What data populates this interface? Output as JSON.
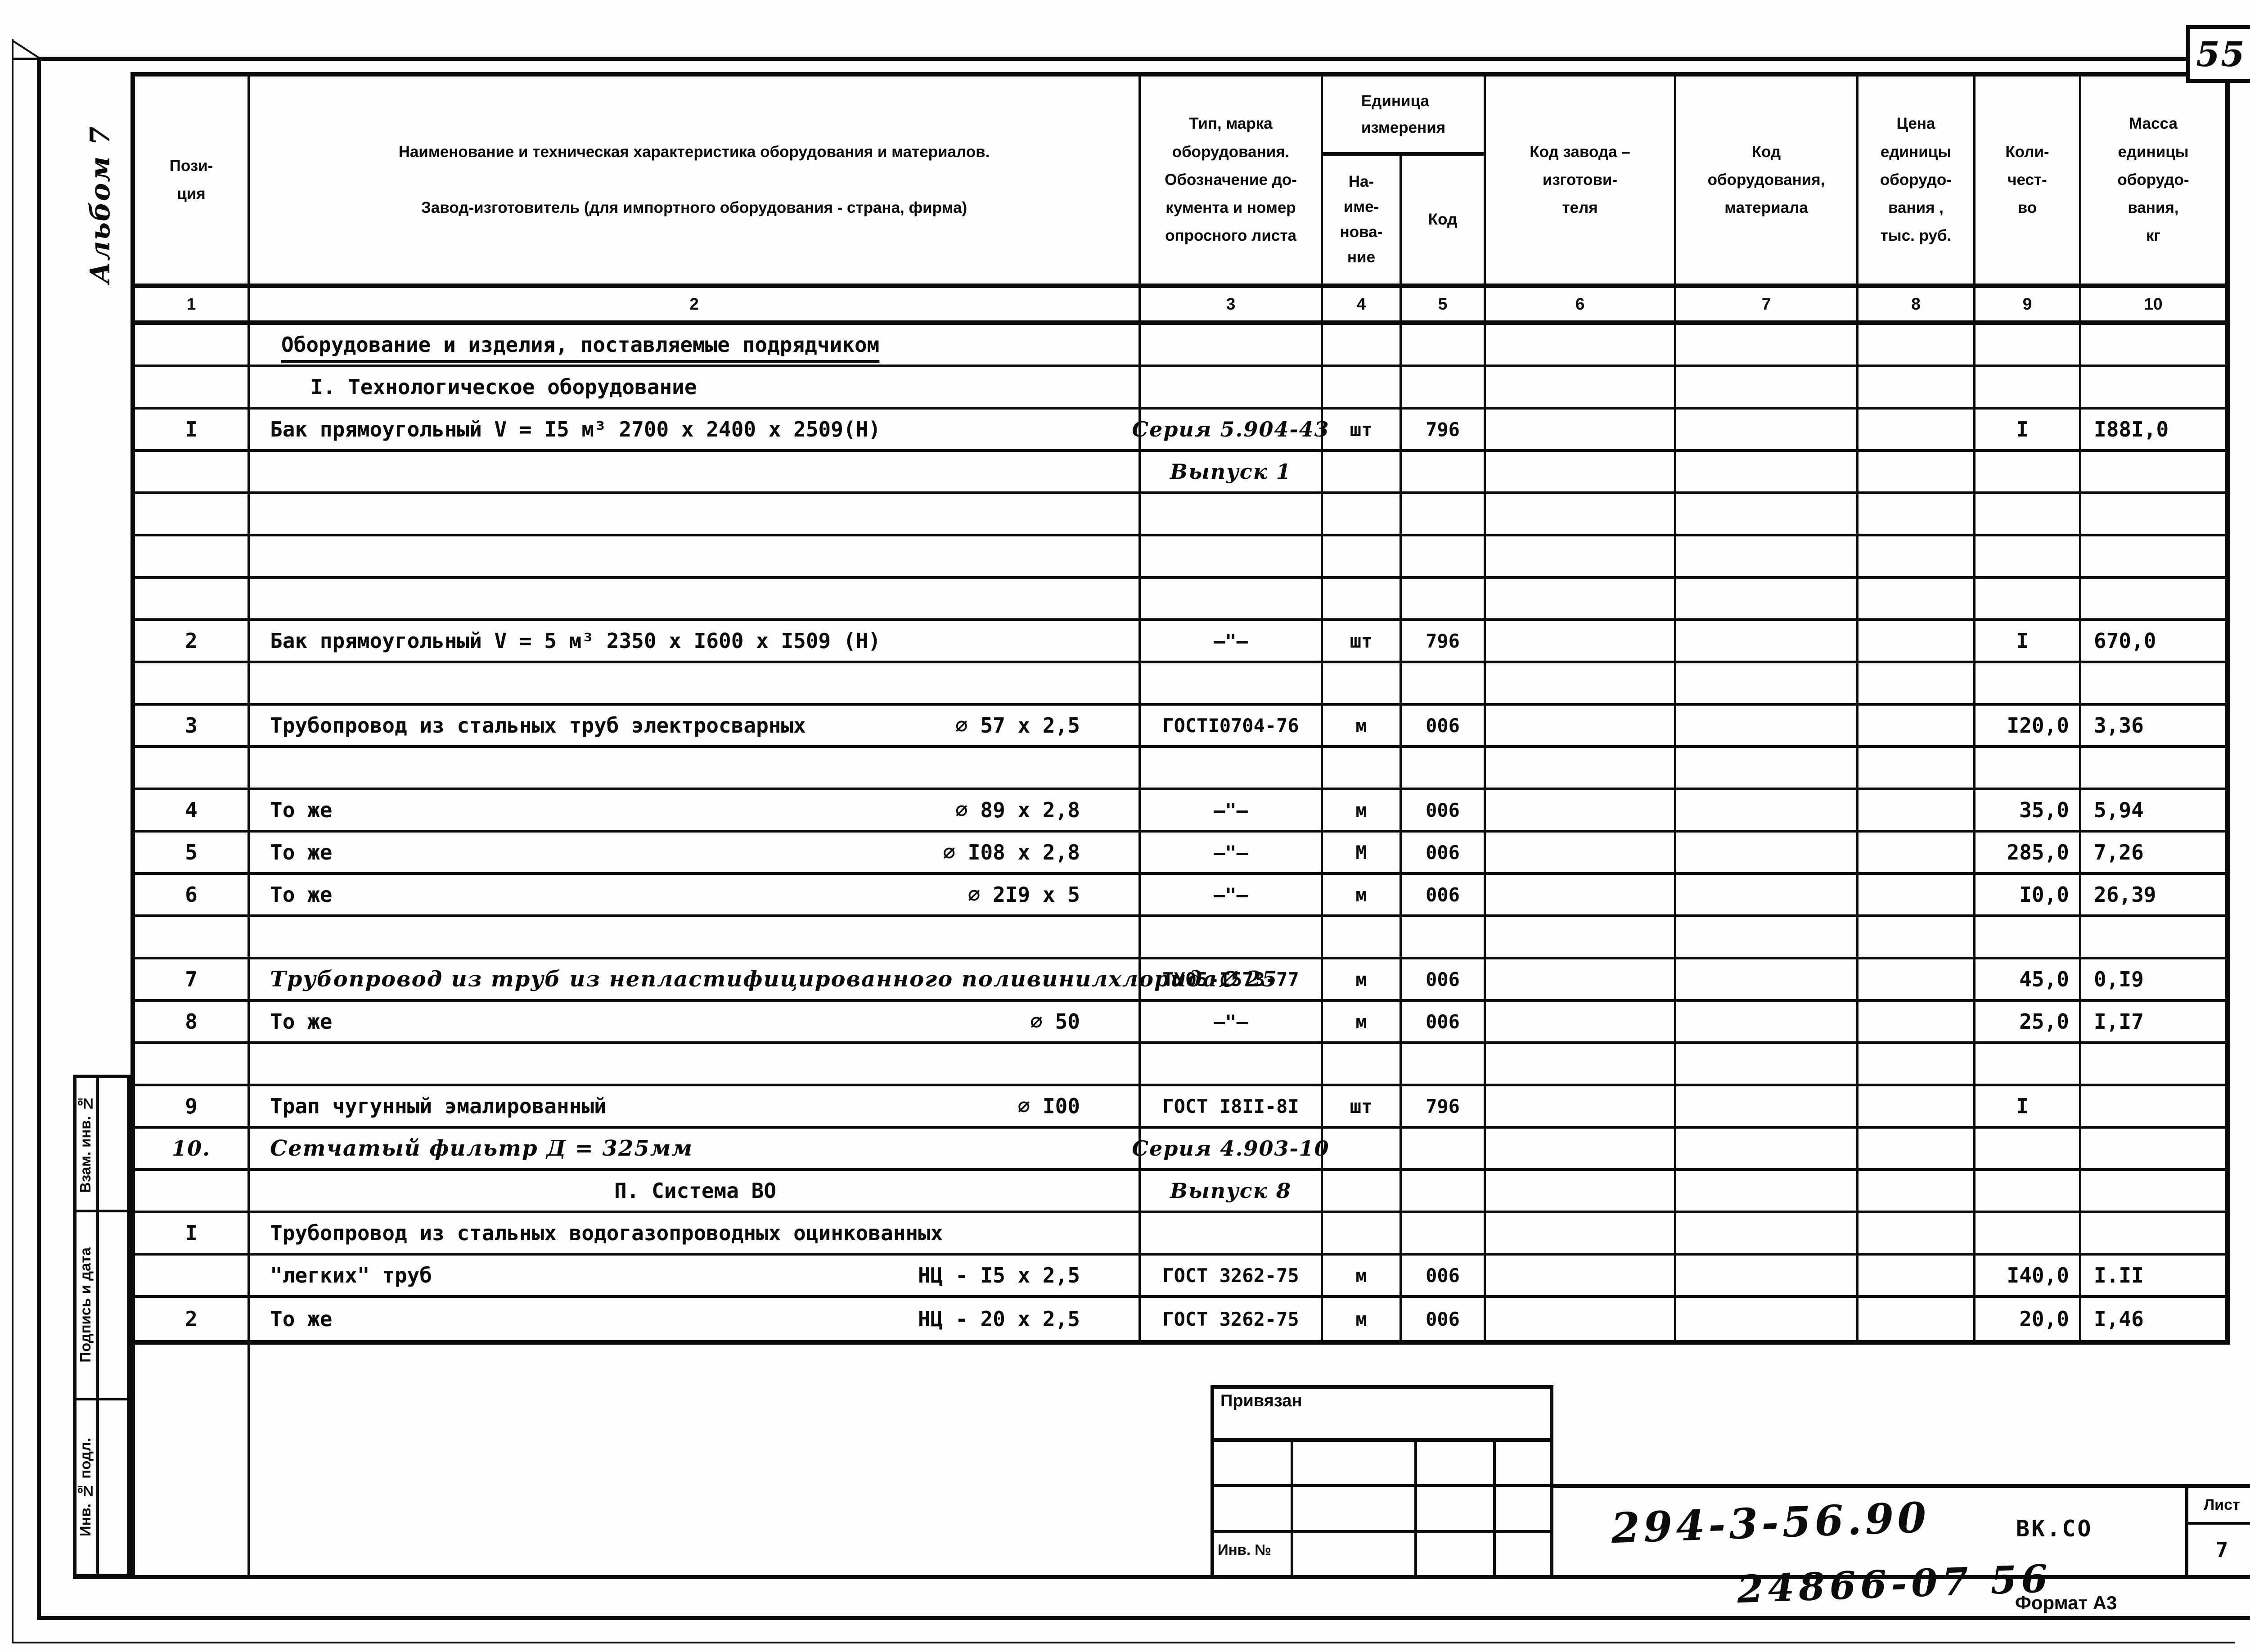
{
  "page": {
    "sheet_corner": "55",
    "album": "Альбом 7",
    "stamp_label": "Привязан",
    "stamp_inv_label": "Инв. №",
    "doc_number": "294-3-56.90",
    "doc_code": "ВК.СО",
    "sheet_label": "Лист",
    "sheet_number": "7",
    "footer_number": "24866-07 56",
    "format": "Формат А3"
  },
  "sidebar": {
    "items": [
      "Взам. инв. №",
      "Подпись и дата",
      "Инв. № подл."
    ]
  },
  "table": {
    "headers": {
      "pos": "Пози-\nция",
      "name": "Наименование и техническая характеристика  оборудования и материалов.\n\nЗавод-изготовитель  (для импортного оборудования -  страна, фирма)",
      "type": "Тип,    марка\nоборудования.\nОбозначение до-\nкумента и номер\nопросного листа",
      "unit_group": "Единица\nизмерения",
      "unit_name": "На-\nиме-\nнова-\nние",
      "unit_code": "Код",
      "plant": "Код  завода –\nизготови-\nтеля",
      "equip": "Код\nоборудования,\nматериала",
      "price": "Цена\nединицы\nоборудо-\nвания ,\nтыс. руб.",
      "qty": "Коли-\nчест-\nво",
      "mass": "Масса\nединицы\nоборудо-\nвания,\nкг"
    },
    "col_numbers": [
      "1",
      "2",
      "3",
      "4",
      "5",
      "6",
      "7",
      "8",
      "9",
      "10"
    ],
    "rows": [
      {
        "style": "sec1",
        "name": "Оборудование и изделия, поставляемые подрядчиком"
      },
      {
        "style": "sec2",
        "name": "I. Технологическое оборудование"
      },
      {
        "pos": "I",
        "name": "Бак прямоугольный  V = I5 м³   2700 х 2400 х 2509(Н)",
        "doc": "Серия 5.904-43",
        "doc_hand": true,
        "unit": "шт",
        "code": "796",
        "qty": "I",
        "mass": "I88I,0"
      },
      {
        "doc": "Выпуск 1",
        "doc_hand": true
      },
      {},
      {},
      {},
      {
        "pos": "2",
        "name": "Бак прямоугольный  V = 5 м³   2350 х I600 х I509 (Н)",
        "doc": "–\"–",
        "unit": "шт",
        "code": "796",
        "qty": "I",
        "mass": "670,0"
      },
      {},
      {
        "pos": "3",
        "name": "Трубопровод из стальных труб электросварных",
        "size": "∅ 57 х 2,5",
        "doc": "ГОСТI0704-76",
        "unit": "м",
        "code": "006",
        "qty": "I20,0",
        "mass": "3,36"
      },
      {},
      {
        "pos": "4",
        "name": "То же",
        "size": "∅ 89 х 2,8",
        "doc": "–\"–",
        "unit": "м",
        "code": "006",
        "qty": "35,0",
        "mass": "5,94"
      },
      {
        "pos": "5",
        "name": "То же",
        "size": "∅ I08 х 2,8",
        "doc": "–\"–",
        "unit": "М",
        "code": "006",
        "qty": "285,0",
        "mass": "7,26"
      },
      {
        "pos": "6",
        "name": "То же",
        "size": "∅ 2I9 х 5",
        "doc": "–\"–",
        "unit": "м",
        "code": "006",
        "qty": "I0,0",
        "mass": "26,39"
      },
      {},
      {
        "pos": "7",
        "name": "Трубопровод из труб из непластифицированного  поливинилхлорида",
        "size": "∅ 25",
        "name_hand": true,
        "doc": "ТУ05-I573-77",
        "unit": "м",
        "code": "006",
        "qty": "45,0",
        "mass": "0,I9"
      },
      {
        "pos": "8",
        "name": "То же",
        "size": "∅ 50",
        "doc": "–\"–",
        "unit": "м",
        "code": "006",
        "qty": "25,0",
        "mass": "I,I7"
      },
      {},
      {
        "pos": "9",
        "name": "Трап чугунный эмалированный",
        "size": "∅ I00",
        "doc": "ГОСТ I8II-8I",
        "unit": "шт",
        "code": "796",
        "qty": "I"
      },
      {
        "pos": "10.",
        "pos_hand": true,
        "name": "Сетчатый фильтр  Д = 325мм",
        "name_hand": true,
        "doc": "Серия 4.903-10",
        "doc_hand": true
      },
      {
        "style": "secC",
        "name": "П. Система ВО",
        "doc": "Выпуск 8",
        "doc_hand": true
      },
      {
        "pos": "I",
        "name": "Трубопровод из стальных водогазопроводных оцинкованных"
      },
      {
        "name": "\"легких\"  труб",
        "size": "НЦ - I5 х 2,5",
        "doc": "ГОСТ 3262-75",
        "unit": "м",
        "code": "006",
        "qty": "I40,0",
        "mass": "I.II"
      },
      {
        "pos": "2",
        "name": "То же",
        "size": "НЦ - 20 х 2,5",
        "doc": "ГОСТ 3262-75",
        "unit": "м",
        "code": "006",
        "qty": "20,0",
        "mass": "I,46"
      }
    ]
  }
}
